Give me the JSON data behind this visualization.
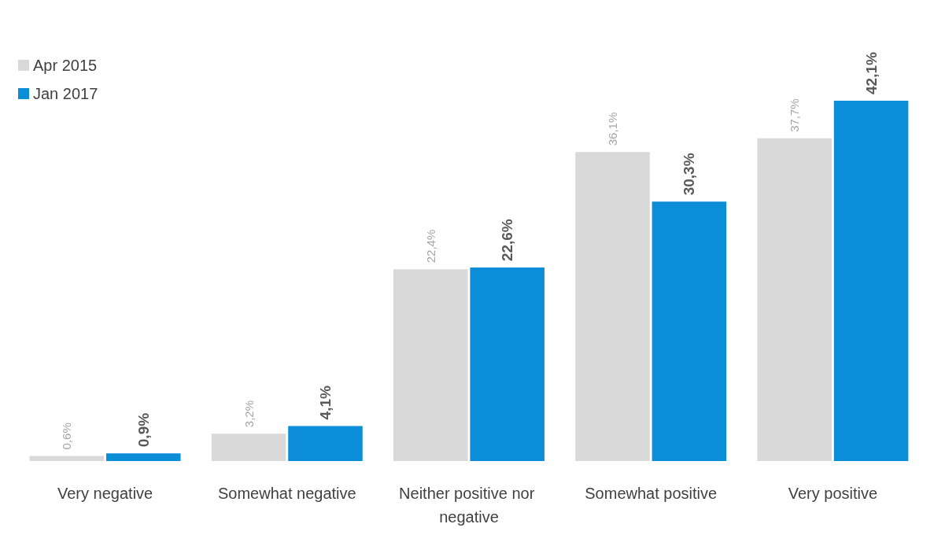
{
  "chart_data": {
    "type": "bar",
    "categories": [
      "Very negative",
      "Somewhat negative",
      "Neither positive nor negative",
      "Somewhat positive",
      "Very positive"
    ],
    "series": [
      {
        "name": "Apr 2015",
        "color": "#d9d9d9",
        "values": [
          0.6,
          3.2,
          22.4,
          36.1,
          37.7
        ],
        "value_labels": [
          "0,6%",
          "3,2%",
          "22,4%",
          "36,1%",
          "37,7%"
        ]
      },
      {
        "name": "Jan 2017",
        "color": "#0b8dd8",
        "values": [
          0.9,
          4.1,
          22.6,
          30.3,
          42.1
        ],
        "value_labels": [
          "0,9%",
          "4,1%",
          "22,6%",
          "30,3%",
          "42,1%"
        ]
      }
    ],
    "legend": "top left"
  }
}
